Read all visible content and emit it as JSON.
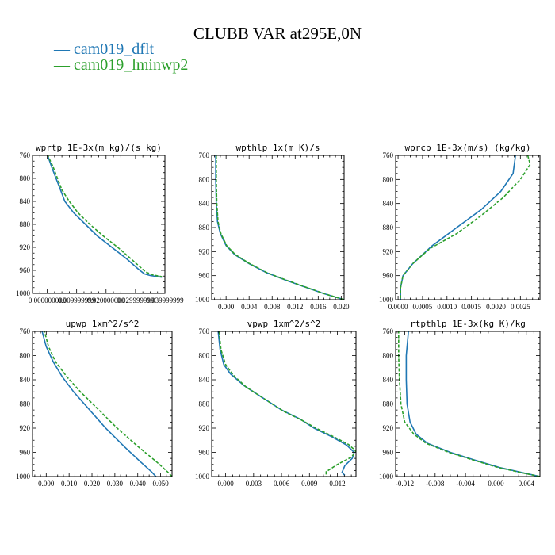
{
  "title": "CLUBB VAR at295E,0N",
  "legend": [
    {
      "label": "— cam019_dflt",
      "color": "#1f77b4"
    },
    {
      "label": "— cam019_lminwp2",
      "color": "#2ca02c"
    }
  ],
  "chart_data": [
    {
      "type": "line",
      "title": "wprtp  1E-3x(m kg)/(s kg)",
      "xlim": [
        -0.005,
        0.04
      ],
      "ylim": [
        760,
        1000
      ],
      "xticks": [
        0.0,
        0.01,
        0.02,
        0.03,
        0.04
      ],
      "xtick_labels": [
        "0.000000000",
        "0.009999999",
        "0.020000000",
        "0.029999999",
        "0.039999999"
      ],
      "yticks": [
        760,
        800,
        840,
        880,
        920,
        960,
        1000
      ],
      "ytick_labels": [
        "760",
        "800",
        "840",
        "880",
        "920",
        "960",
        "1000"
      ],
      "series": [
        {
          "name": "cam019_dflt",
          "color": "#1f77b4",
          "dash": "",
          "points": [
            [
              0.0,
              758
            ],
            [
              0.0015,
              780
            ],
            [
              0.003,
              800
            ],
            [
              0.0045,
              820
            ],
            [
              0.006,
              840
            ],
            [
              0.009,
              860
            ],
            [
              0.013,
              880
            ],
            [
              0.017,
              900
            ],
            [
              0.022,
              920
            ],
            [
              0.027,
              940
            ],
            [
              0.031,
              958
            ],
            [
              0.033,
              966
            ],
            [
              0.035,
              969
            ],
            [
              0.039,
              972
            ]
          ]
        },
        {
          "name": "cam019_lminwp2",
          "color": "#2ca02c",
          "dash": "4,2",
          "points": [
            [
              0.0,
              758
            ],
            [
              0.002,
              780
            ],
            [
              0.0035,
              800
            ],
            [
              0.005,
              820
            ],
            [
              0.0075,
              840
            ],
            [
              0.0105,
              860
            ],
            [
              0.0145,
              880
            ],
            [
              0.019,
              900
            ],
            [
              0.024,
              920
            ],
            [
              0.0285,
              940
            ],
            [
              0.032,
              956
            ],
            [
              0.0335,
              963
            ],
            [
              0.036,
              968
            ],
            [
              0.039,
              971
            ]
          ]
        }
      ]
    },
    {
      "type": "line",
      "title": "wpthlp  1x(m K)/s",
      "xlim": [
        -0.0025,
        0.0205
      ],
      "ylim": [
        760,
        1000
      ],
      "xticks": [
        0.0,
        0.004,
        0.008,
        0.012,
        0.016,
        0.02
      ],
      "xtick_labels": [
        "0.000",
        "0.004",
        "0.008",
        "0.012",
        "0.016",
        "0.020"
      ],
      "yticks": [
        760,
        800,
        840,
        880,
        920,
        960,
        1000
      ],
      "ytick_labels": [
        "760",
        "800",
        "840",
        "880",
        "920",
        "960",
        "1000"
      ],
      "series": [
        {
          "name": "cam019_dflt",
          "color": "#1f77b4",
          "dash": "",
          "points": [
            [
              -0.0018,
              760
            ],
            [
              -0.0018,
              800
            ],
            [
              -0.0017,
              840
            ],
            [
              -0.0015,
              870
            ],
            [
              -0.001,
              890
            ],
            [
              0.0,
              910
            ],
            [
              0.0015,
              925
            ],
            [
              0.004,
              940
            ],
            [
              0.007,
              955
            ],
            [
              0.0105,
              968
            ],
            [
              0.014,
              980
            ],
            [
              0.017,
              990
            ],
            [
              0.0205,
              1000
            ]
          ]
        },
        {
          "name": "cam019_lminwp2",
          "color": "#2ca02c",
          "dash": "4,2",
          "points": [
            [
              -0.0017,
              760
            ],
            [
              -0.0017,
              800
            ],
            [
              -0.0016,
              840
            ],
            [
              -0.0014,
              870
            ],
            [
              -0.0009,
              890
            ],
            [
              0.0001,
              910
            ],
            [
              0.0016,
              925
            ],
            [
              0.0041,
              940
            ],
            [
              0.0071,
              955
            ],
            [
              0.0106,
              968
            ],
            [
              0.0141,
              980
            ],
            [
              0.0171,
              990
            ],
            [
              0.0205,
              1000
            ]
          ]
        }
      ]
    },
    {
      "type": "line",
      "title": "wprcp  1E-3x(m/s) (kg/kg)",
      "xlim": [
        -5e-05,
        0.0029
      ],
      "ylim": [
        760,
        1000
      ],
      "xticks": [
        0.0,
        0.0005,
        0.001,
        0.0015,
        0.002,
        0.0025
      ],
      "xtick_labels": [
        "0.0000",
        "0.0005",
        "0.0010",
        "0.0015",
        "0.0020",
        "0.0025"
      ],
      "yticks": [
        760,
        800,
        840,
        880,
        920,
        960,
        1000
      ],
      "ytick_labels": [
        "760",
        "800",
        "840",
        "880",
        "920",
        "960",
        "1000"
      ],
      "series": [
        {
          "name": "cam019_dflt",
          "color": "#1f77b4",
          "dash": "",
          "points": [
            [
              0.0024,
              760
            ],
            [
              0.00235,
              790
            ],
            [
              0.0021,
              820
            ],
            [
              0.0017,
              850
            ],
            [
              0.0012,
              880
            ],
            [
              0.0007,
              910
            ],
            [
              0.0003,
              940
            ],
            [
              0.0001,
              960
            ],
            [
              5e-05,
              980
            ],
            [
              5e-05,
              1000
            ]
          ]
        },
        {
          "name": "cam019_lminwp2",
          "color": "#2ca02c",
          "dash": "4,2",
          "points": [
            [
              0.00265,
              760
            ],
            [
              0.0027,
              775
            ],
            [
              0.0025,
              800
            ],
            [
              0.00215,
              830
            ],
            [
              0.0017,
              860
            ],
            [
              0.0012,
              890
            ],
            [
              0.00065,
              915
            ],
            [
              0.0003,
              940
            ],
            [
              0.0001,
              960
            ],
            [
              5e-05,
              980
            ],
            [
              5e-05,
              1000
            ]
          ]
        }
      ]
    },
    {
      "type": "line",
      "title": "upwp  1xm^2/s^2",
      "xlim": [
        -0.006,
        0.055
      ],
      "ylim": [
        760,
        1000
      ],
      "xticks": [
        0.0,
        0.01,
        0.02,
        0.03,
        0.04,
        0.05
      ],
      "xtick_labels": [
        "0.000",
        "0.010",
        "0.020",
        "0.030",
        "0.040",
        "0.050"
      ],
      "yticks": [
        760,
        800,
        840,
        880,
        920,
        960,
        1000
      ],
      "ytick_labels": [
        "760",
        "800",
        "840",
        "880",
        "920",
        "960",
        "1000"
      ],
      "series": [
        {
          "name": "cam019_dflt",
          "color": "#1f77b4",
          "dash": "",
          "points": [
            [
              -0.002,
              757
            ],
            [
              0.0,
              785
            ],
            [
              0.003,
              810
            ],
            [
              0.007,
              835
            ],
            [
              0.012,
              860
            ],
            [
              0.019,
              890
            ],
            [
              0.026,
              920
            ],
            [
              0.034,
              950
            ],
            [
              0.041,
              975
            ],
            [
              0.046,
              992
            ],
            [
              0.048,
              1000
            ]
          ]
        },
        {
          "name": "cam019_lminwp2",
          "color": "#2ca02c",
          "dash": "4,2",
          "points": [
            [
              -0.001,
              757
            ],
            [
              0.001,
              785
            ],
            [
              0.004,
              810
            ],
            [
              0.009,
              835
            ],
            [
              0.015,
              860
            ],
            [
              0.023,
              890
            ],
            [
              0.031,
              920
            ],
            [
              0.04,
              950
            ],
            [
              0.048,
              975
            ],
            [
              0.053,
              992
            ],
            [
              0.055,
              1000
            ]
          ]
        }
      ]
    },
    {
      "type": "line",
      "title": "vpwp  1xm^2/s^2",
      "xlim": [
        -0.0015,
        0.014
      ],
      "ylim": [
        760,
        1000
      ],
      "xticks": [
        0.0,
        0.003,
        0.006,
        0.009,
        0.012
      ],
      "xtick_labels": [
        "0.000",
        "0.003",
        "0.006",
        "0.009",
        "0.012"
      ],
      "yticks": [
        760,
        800,
        840,
        880,
        920,
        960,
        1000
      ],
      "ytick_labels": [
        "760",
        "800",
        "840",
        "880",
        "920",
        "960",
        "1000"
      ],
      "series": [
        {
          "name": "cam019_dflt",
          "color": "#1f77b4",
          "dash": "",
          "points": [
            [
              -0.0008,
              760
            ],
            [
              -0.0006,
              790
            ],
            [
              -0.0002,
              815
            ],
            [
              0.0005,
              830
            ],
            [
              0.002,
              850
            ],
            [
              0.004,
              870
            ],
            [
              0.006,
              890
            ],
            [
              0.008,
              905
            ],
            [
              0.0095,
              920
            ],
            [
              0.0115,
              935
            ],
            [
              0.013,
              948
            ],
            [
              0.0138,
              960
            ],
            [
              0.0136,
              970
            ],
            [
              0.0128,
              982
            ],
            [
              0.0125,
              993
            ],
            [
              0.0128,
              998
            ]
          ]
        },
        {
          "name": "cam019_lminwp2",
          "color": "#2ca02c",
          "dash": "4,2",
          "points": [
            [
              -0.0007,
              760
            ],
            [
              -0.0005,
              790
            ],
            [
              0.0,
              815
            ],
            [
              0.0008,
              832
            ],
            [
              0.0022,
              852
            ],
            [
              0.0042,
              872
            ],
            [
              0.0062,
              892
            ],
            [
              0.0082,
              907
            ],
            [
              0.0097,
              920
            ],
            [
              0.0117,
              935
            ],
            [
              0.0132,
              947
            ],
            [
              0.014,
              958
            ],
            [
              0.0135,
              968
            ],
            [
              0.012,
              980
            ],
            [
              0.0108,
              992
            ],
            [
              0.0108,
              1000
            ]
          ]
        }
      ]
    },
    {
      "type": "line",
      "title": "rtpthlp  1E-3x(kg K)/kg",
      "xlim": [
        -0.0132,
        0.0058
      ],
      "ylim": [
        760,
        1000
      ],
      "xticks": [
        -0.012,
        -0.008,
        -0.004,
        0.0,
        0.004
      ],
      "xtick_labels": [
        "-0.012",
        "-0.008",
        "-0.004",
        "0.000",
        "0.004"
      ],
      "yticks": [
        760,
        800,
        840,
        880,
        920,
        960,
        1000
      ],
      "ytick_labels": [
        "760",
        "800",
        "840",
        "880",
        "920",
        "960",
        "1000"
      ],
      "series": [
        {
          "name": "cam019_dflt",
          "color": "#1f77b4",
          "dash": "",
          "points": [
            [
              -0.0115,
              758
            ],
            [
              -0.0118,
              800
            ],
            [
              -0.0118,
              840
            ],
            [
              -0.0117,
              880
            ],
            [
              -0.0113,
              910
            ],
            [
              -0.0105,
              930
            ],
            [
              -0.009,
              945
            ],
            [
              -0.006,
              960
            ],
            [
              -0.003,
              972
            ],
            [
              0.0005,
              985
            ],
            [
              0.004,
              995
            ],
            [
              0.0058,
              1000
            ]
          ]
        },
        {
          "name": "cam019_lminwp2",
          "color": "#2ca02c",
          "dash": "4,2",
          "points": [
            [
              -0.0128,
              758
            ],
            [
              -0.0128,
              800
            ],
            [
              -0.0127,
              840
            ],
            [
              -0.0125,
              880
            ],
            [
              -0.012,
              910
            ],
            [
              -0.0108,
              930
            ],
            [
              -0.0092,
              945
            ],
            [
              -0.0062,
              960
            ],
            [
              -0.0032,
              972
            ],
            [
              0.0003,
              985
            ],
            [
              0.0039,
              995
            ],
            [
              0.0058,
              1000
            ]
          ]
        }
      ]
    }
  ]
}
